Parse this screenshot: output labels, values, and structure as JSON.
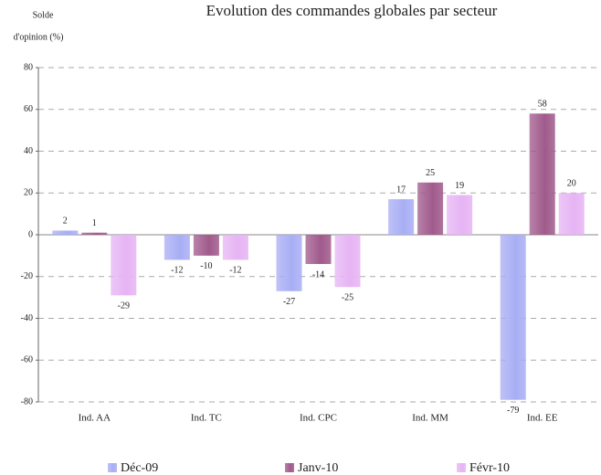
{
  "chart_data": {
    "type": "bar",
    "title": "Evolution des commandes globales par secteur",
    "y_label": [
      "Solde",
      "d'opinion (%)"
    ],
    "categories": [
      "Ind. AA",
      "Ind. TC",
      "Ind. CPC",
      "Ind. MM",
      "Ind. EE"
    ],
    "series": [
      {
        "name": "Déc-09",
        "color": "#a8aef4",
        "values": [
          2,
          -12,
          -27,
          17,
          -79
        ]
      },
      {
        "name": "Janv-10",
        "color": "#a05a8c",
        "values": [
          1,
          -10,
          -14,
          25,
          58
        ]
      },
      {
        "name": "Févr-10",
        "color": "#e6b4f4",
        "values": [
          -29,
          -12,
          -25,
          19,
          20
        ]
      }
    ],
    "ylim": [
      -80,
      80
    ],
    "yticks": [
      -80,
      -60,
      -40,
      -20,
      0,
      20,
      40,
      60,
      80
    ],
    "grid": true
  }
}
